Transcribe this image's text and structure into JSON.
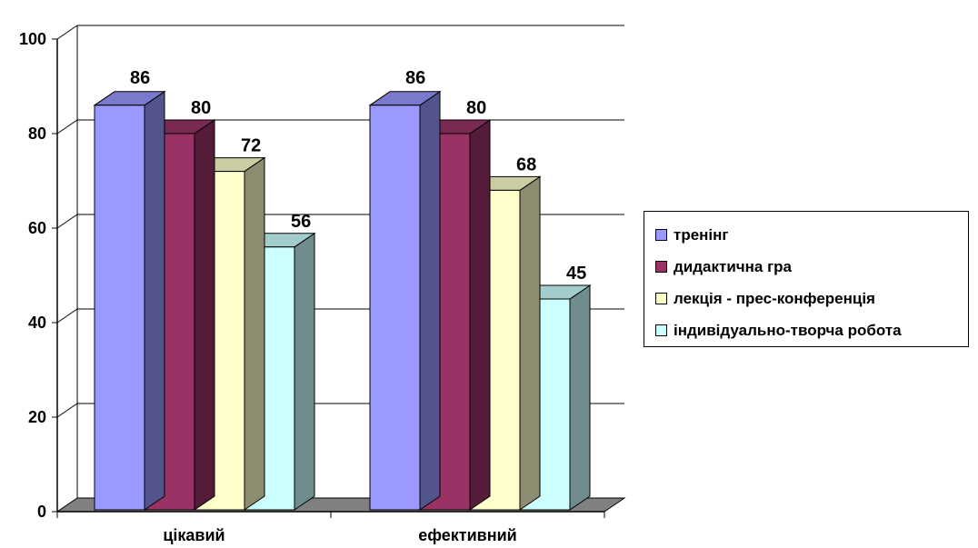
{
  "chart_data": {
    "type": "bar",
    "categories": [
      "цікавий",
      "ефективний"
    ],
    "series": [
      {
        "name": "тренінг",
        "values": [
          86,
          86
        ],
        "color": "#9999ff"
      },
      {
        "name": "дидактична гра",
        "values": [
          80,
          80
        ],
        "color": "#993366"
      },
      {
        "name": "лекція - прес-конференція",
        "values": [
          72,
          68
        ],
        "color": "#ffffcc"
      },
      {
        "name": "індивідуально-творча робота",
        "values": [
          56,
          45
        ],
        "color": "#ccffff"
      }
    ],
    "ylim": [
      0,
      100
    ],
    "yticks": [
      "0",
      "20",
      "40",
      "60",
      "80",
      "100"
    ],
    "data_labels": true,
    "grid": true,
    "legend_position": "right",
    "style": "3d-clustered-column"
  }
}
